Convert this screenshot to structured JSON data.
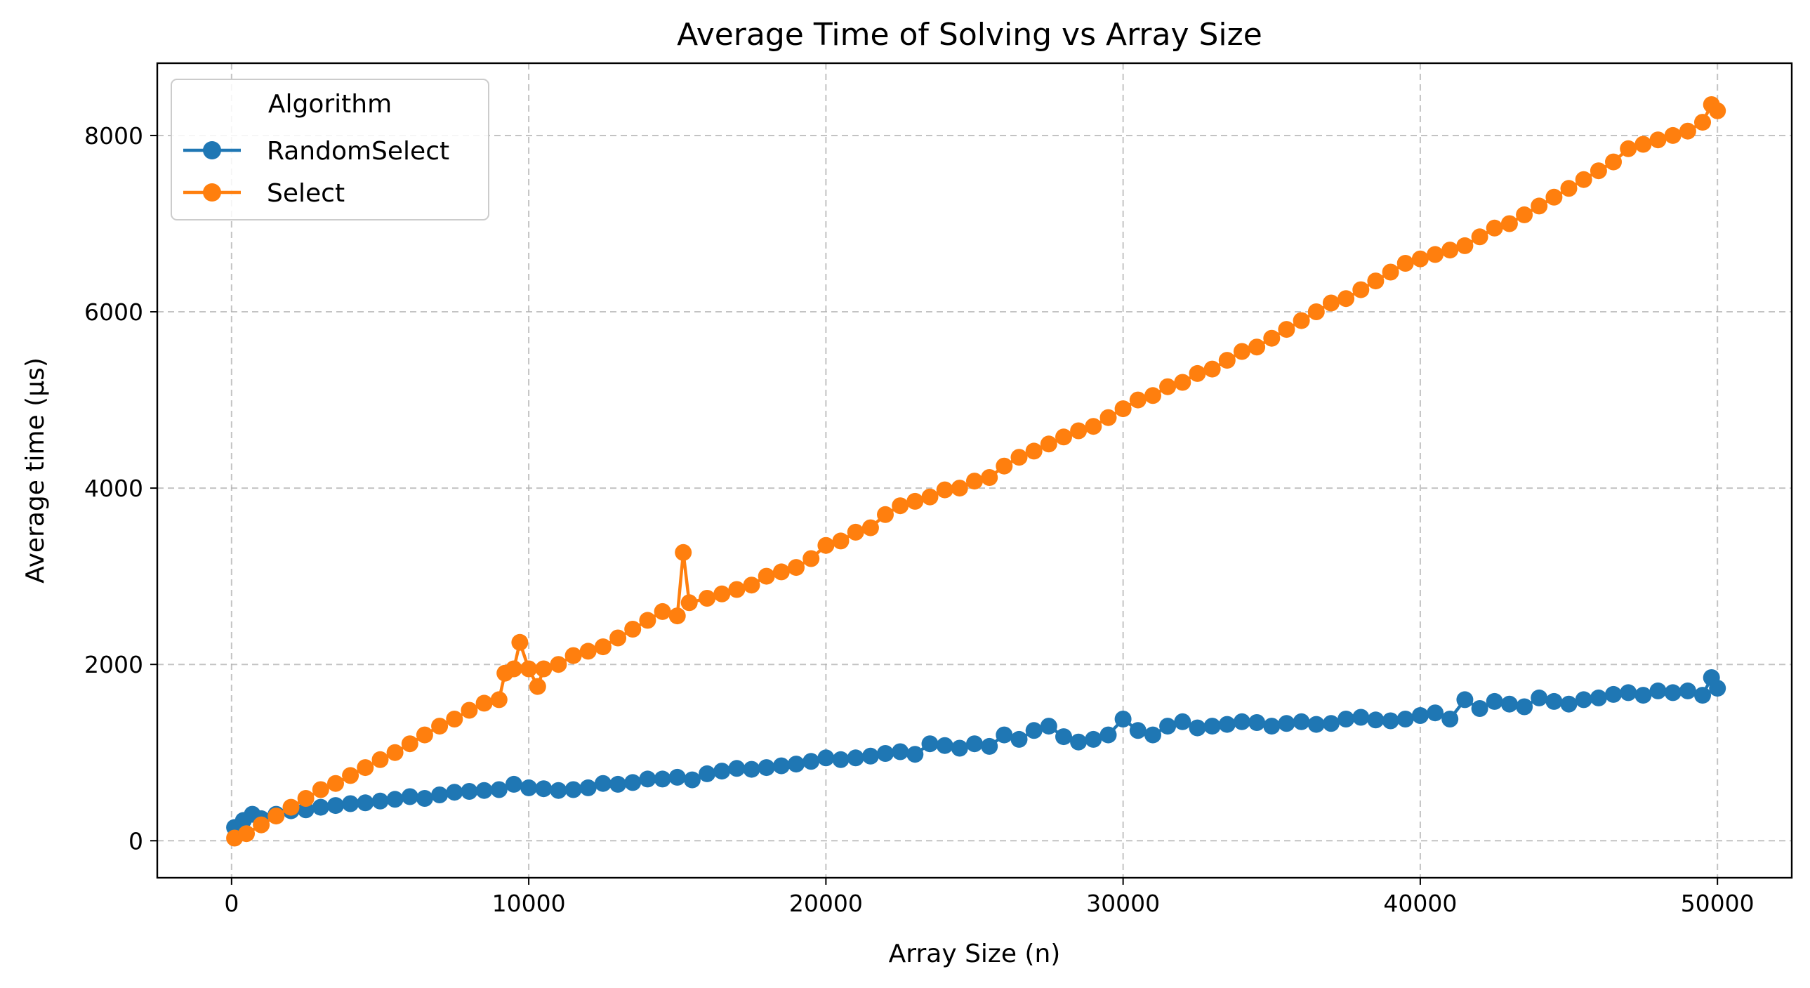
{
  "chart_data": {
    "type": "line",
    "title": "Average Time of Solving vs Array Size",
    "xlabel": "Array Size (n)",
    "ylabel": "Average time (µs)",
    "xlim": [
      -2500,
      52500
    ],
    "ylim": [
      -420,
      8820
    ],
    "x_ticks": [
      0,
      10000,
      20000,
      30000,
      40000,
      50000
    ],
    "y_ticks": [
      0,
      2000,
      4000,
      6000,
      8000
    ],
    "grid": true,
    "legend": {
      "title": "Algorithm",
      "placement": "top-left"
    },
    "series": [
      {
        "name": "RandomSelect",
        "color": "#1f77b4",
        "points": [
          [
            100,
            150
          ],
          [
            400,
            230
          ],
          [
            700,
            300
          ],
          [
            1000,
            250
          ],
          [
            1500,
            300
          ],
          [
            2000,
            340
          ],
          [
            2500,
            350
          ],
          [
            3000,
            380
          ],
          [
            3500,
            400
          ],
          [
            4000,
            420
          ],
          [
            4500,
            430
          ],
          [
            5000,
            450
          ],
          [
            5500,
            470
          ],
          [
            6000,
            500
          ],
          [
            6500,
            480
          ],
          [
            7000,
            520
          ],
          [
            7500,
            550
          ],
          [
            8000,
            560
          ],
          [
            8500,
            570
          ],
          [
            9000,
            580
          ],
          [
            9500,
            640
          ],
          [
            10000,
            600
          ],
          [
            10500,
            590
          ],
          [
            11000,
            570
          ],
          [
            11500,
            580
          ],
          [
            12000,
            600
          ],
          [
            12500,
            650
          ],
          [
            13000,
            640
          ],
          [
            13500,
            660
          ],
          [
            14000,
            700
          ],
          [
            14500,
            700
          ],
          [
            15000,
            720
          ],
          [
            15500,
            690
          ],
          [
            16000,
            760
          ],
          [
            16500,
            790
          ],
          [
            17000,
            820
          ],
          [
            17500,
            810
          ],
          [
            18000,
            830
          ],
          [
            18500,
            850
          ],
          [
            19000,
            870
          ],
          [
            19500,
            900
          ],
          [
            20000,
            940
          ],
          [
            20500,
            920
          ],
          [
            21000,
            940
          ],
          [
            21500,
            960
          ],
          [
            22000,
            990
          ],
          [
            22500,
            1010
          ],
          [
            23000,
            980
          ],
          [
            23500,
            1100
          ],
          [
            24000,
            1080
          ],
          [
            24500,
            1050
          ],
          [
            25000,
            1100
          ],
          [
            25500,
            1070
          ],
          [
            26000,
            1200
          ],
          [
            26500,
            1150
          ],
          [
            27000,
            1250
          ],
          [
            27500,
            1300
          ],
          [
            28000,
            1180
          ],
          [
            28500,
            1120
          ],
          [
            29000,
            1150
          ],
          [
            29500,
            1200
          ],
          [
            30000,
            1380
          ],
          [
            30500,
            1250
          ],
          [
            31000,
            1200
          ],
          [
            31500,
            1300
          ],
          [
            32000,
            1350
          ],
          [
            32500,
            1280
          ],
          [
            33000,
            1300
          ],
          [
            33500,
            1320
          ],
          [
            34000,
            1350
          ],
          [
            34500,
            1340
          ],
          [
            35000,
            1300
          ],
          [
            35500,
            1330
          ],
          [
            36000,
            1350
          ],
          [
            36500,
            1320
          ],
          [
            37000,
            1330
          ],
          [
            37500,
            1380
          ],
          [
            38000,
            1400
          ],
          [
            38500,
            1370
          ],
          [
            39000,
            1360
          ],
          [
            39500,
            1380
          ],
          [
            40000,
            1420
          ],
          [
            40500,
            1450
          ],
          [
            41000,
            1380
          ],
          [
            41500,
            1600
          ],
          [
            42000,
            1500
          ],
          [
            42500,
            1580
          ],
          [
            43000,
            1550
          ],
          [
            43500,
            1520
          ],
          [
            44000,
            1620
          ],
          [
            44500,
            1580
          ],
          [
            45000,
            1550
          ],
          [
            45500,
            1600
          ],
          [
            46000,
            1620
          ],
          [
            46500,
            1660
          ],
          [
            47000,
            1680
          ],
          [
            47500,
            1650
          ],
          [
            48000,
            1700
          ],
          [
            48500,
            1680
          ],
          [
            49000,
            1700
          ],
          [
            49500,
            1650
          ],
          [
            49800,
            1850
          ],
          [
            50000,
            1730
          ]
        ]
      },
      {
        "name": "Select",
        "color": "#ff7f0e",
        "points": [
          [
            100,
            30
          ],
          [
            500,
            80
          ],
          [
            1000,
            180
          ],
          [
            1500,
            280
          ],
          [
            2000,
            380
          ],
          [
            2500,
            480
          ],
          [
            3000,
            580
          ],
          [
            3500,
            650
          ],
          [
            4000,
            740
          ],
          [
            4500,
            830
          ],
          [
            5000,
            920
          ],
          [
            5500,
            1000
          ],
          [
            6000,
            1100
          ],
          [
            6500,
            1200
          ],
          [
            7000,
            1300
          ],
          [
            7500,
            1380
          ],
          [
            8000,
            1480
          ],
          [
            8500,
            1560
          ],
          [
            9000,
            1600
          ],
          [
            9200,
            1900
          ],
          [
            9500,
            1950
          ],
          [
            9700,
            2250
          ],
          [
            10000,
            1950
          ],
          [
            10300,
            1750
          ],
          [
            10500,
            1950
          ],
          [
            11000,
            2000
          ],
          [
            11500,
            2100
          ],
          [
            12000,
            2150
          ],
          [
            12500,
            2200
          ],
          [
            13000,
            2300
          ],
          [
            13500,
            2400
          ],
          [
            14000,
            2500
          ],
          [
            14500,
            2600
          ],
          [
            15000,
            2550
          ],
          [
            15200,
            3270
          ],
          [
            15400,
            2700
          ],
          [
            16000,
            2750
          ],
          [
            16500,
            2800
          ],
          [
            17000,
            2850
          ],
          [
            17500,
            2900
          ],
          [
            18000,
            3000
          ],
          [
            18500,
            3050
          ],
          [
            19000,
            3100
          ],
          [
            19500,
            3200
          ],
          [
            20000,
            3350
          ],
          [
            20500,
            3400
          ],
          [
            21000,
            3500
          ],
          [
            21500,
            3550
          ],
          [
            22000,
            3700
          ],
          [
            22500,
            3800
          ],
          [
            23000,
            3850
          ],
          [
            23500,
            3900
          ],
          [
            24000,
            3980
          ],
          [
            24500,
            4000
          ],
          [
            25000,
            4080
          ],
          [
            25500,
            4120
          ],
          [
            26000,
            4250
          ],
          [
            26500,
            4350
          ],
          [
            27000,
            4420
          ],
          [
            27500,
            4500
          ],
          [
            28000,
            4580
          ],
          [
            28500,
            4650
          ],
          [
            29000,
            4700
          ],
          [
            29500,
            4800
          ],
          [
            30000,
            4900
          ],
          [
            30500,
            5000
          ],
          [
            31000,
            5050
          ],
          [
            31500,
            5150
          ],
          [
            32000,
            5200
          ],
          [
            32500,
            5300
          ],
          [
            33000,
            5350
          ],
          [
            33500,
            5450
          ],
          [
            34000,
            5550
          ],
          [
            34500,
            5600
          ],
          [
            35000,
            5700
          ],
          [
            35500,
            5800
          ],
          [
            36000,
            5900
          ],
          [
            36500,
            6000
          ],
          [
            37000,
            6100
          ],
          [
            37500,
            6150
          ],
          [
            38000,
            6250
          ],
          [
            38500,
            6350
          ],
          [
            39000,
            6450
          ],
          [
            39500,
            6550
          ],
          [
            40000,
            6600
          ],
          [
            40500,
            6650
          ],
          [
            41000,
            6700
          ],
          [
            41500,
            6750
          ],
          [
            42000,
            6850
          ],
          [
            42500,
            6950
          ],
          [
            43000,
            7000
          ],
          [
            43500,
            7100
          ],
          [
            44000,
            7200
          ],
          [
            44500,
            7300
          ],
          [
            45000,
            7400
          ],
          [
            45500,
            7500
          ],
          [
            46000,
            7600
          ],
          [
            46500,
            7700
          ],
          [
            47000,
            7850
          ],
          [
            47500,
            7900
          ],
          [
            48000,
            7950
          ],
          [
            48500,
            8000
          ],
          [
            49000,
            8050
          ],
          [
            49500,
            8150
          ],
          [
            49800,
            8350
          ],
          [
            50000,
            8280
          ]
        ]
      }
    ]
  }
}
